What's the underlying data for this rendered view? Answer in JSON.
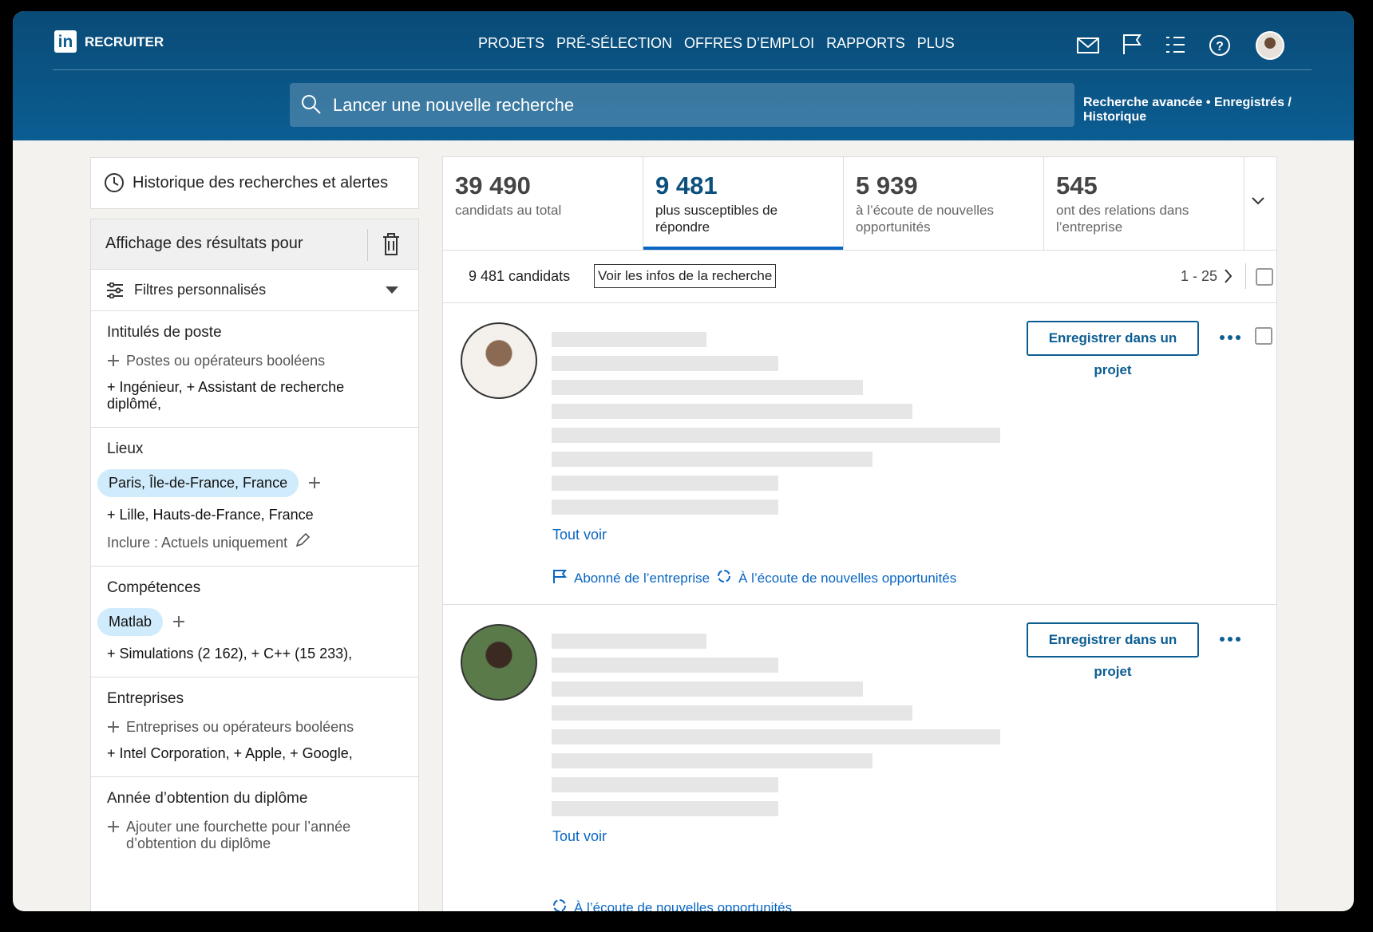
{
  "header": {
    "brand": "RECRUITER",
    "nav": [
      "PROJETS",
      "PRÉ-SÉLECTION",
      "OFFRES D’EMPLOI",
      "RAPPORTS",
      "PLUS"
    ],
    "search_placeholder": "Lancer une nouvelle recherche",
    "links": [
      "Recherche avancée",
      "Enregistrés / Historique"
    ]
  },
  "sidebar": {
    "history": "Historique des recherches et alertes",
    "results_for": "Affichage des résultats pour",
    "custom_filters": "Filtres personnalisés",
    "sections": [
      {
        "title": "Intitulés de poste",
        "add_hint": "Postes ou opérateurs booléens",
        "suggestions": "+ Ingénieur, + Assistant de recherche diplômé,"
      },
      {
        "title": "Lieux",
        "chip": "Paris, Île-de-France, France",
        "suggestions": "+ Lille, Hauts-de-France, France",
        "note": "Inclure : Actuels uniquement"
      },
      {
        "title": "Compétences",
        "chip": "Matlab",
        "suggestions": "+ Simulations (2 162), + C++ (15 233),"
      },
      {
        "title": "Entreprises",
        "add_hint": "Entreprises ou opérateurs booléens",
        "suggestions": "+ Intel Corporation, + Apple, + Google,"
      },
      {
        "title": "Année d’obtention du diplôme",
        "add_hint": "Ajouter une fourchette pour l’année d’obtention du diplôme"
      }
    ]
  },
  "stats": {
    "selected": 1,
    "items": [
      {
        "value": "39 490",
        "label": "candidats au total"
      },
      {
        "value": "9 481",
        "label": "plus susceptibles de répondre"
      },
      {
        "value": "5 939",
        "label": "à l’écoute de nouvelles opportunités"
      },
      {
        "value": "545",
        "label": "ont des relations dans l’entreprise"
      }
    ]
  },
  "toolbar": {
    "count": "9 481 candidats",
    "info_button": "Voir les infos de la recherche",
    "range": "1 - 25"
  },
  "results": [
    {
      "save": "Enregistrer dans un projet",
      "see_all": "Tout voir",
      "badges": [
        "Abonné de l’entreprise",
        "À l’écoute de nouvelles opportunités"
      ]
    },
    {
      "save": "Enregistrer dans un projet",
      "see_all": "Tout voir",
      "badges": [
        "À l’écoute de nouvelles opportunités"
      ]
    }
  ]
}
